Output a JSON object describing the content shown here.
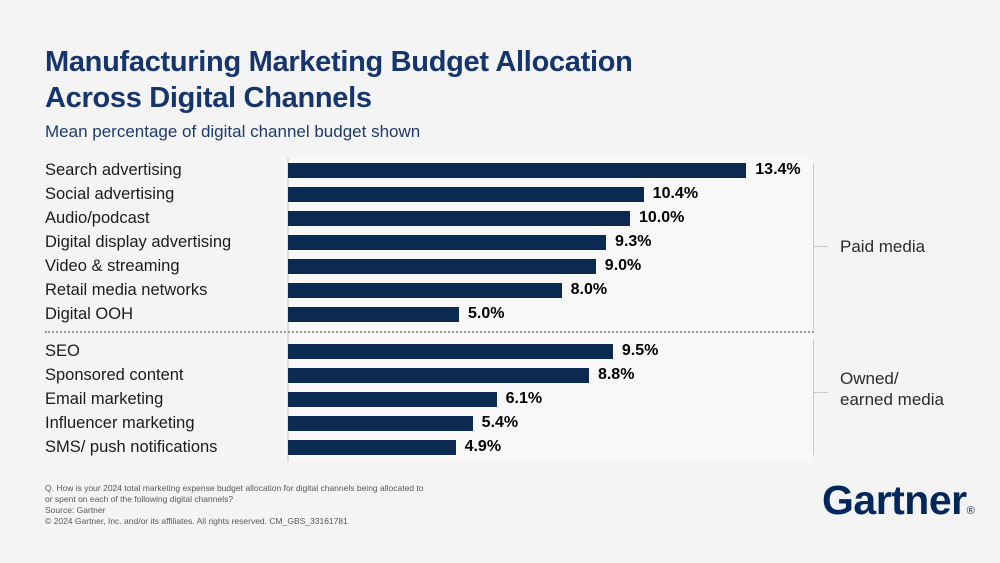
{
  "header": {
    "title_line1": "Manufacturing Marketing Budget Allocation",
    "title_line2": "Across Digital Channels",
    "subtitle": "Mean percentage of digital channel budget shown"
  },
  "chart_data": {
    "type": "bar",
    "orientation": "horizontal",
    "title": "Manufacturing Marketing Budget Allocation Across Digital Channels",
    "subtitle": "Mean percentage of digital channel budget shown",
    "unit": "percent of digital channel budget (mean)",
    "value_suffix": "%",
    "xlim": [
      0,
      15.4
    ],
    "grid": false,
    "bar_color": "#0a2a52",
    "groups": [
      {
        "label": "Paid media",
        "label_lines": [
          "Paid media"
        ],
        "categories": [
          "Search advertising",
          "Social advertising",
          "Audio/podcast",
          "Digital display advertising",
          "Video & streaming",
          "Retail media networks",
          "Digital OOH"
        ],
        "values": [
          13.4,
          10.4,
          10.0,
          9.3,
          9.0,
          8.0,
          5.0
        ]
      },
      {
        "label": "Owned/ earned media",
        "label_lines": [
          "Owned/",
          "earned media"
        ],
        "categories": [
          "SEO",
          "Sponsored content",
          "Email marketing",
          "Influencer marketing",
          "SMS/ push notifications"
        ],
        "values": [
          9.5,
          8.8,
          6.1,
          5.4,
          4.9
        ]
      }
    ]
  },
  "footer": {
    "lines": [
      "Q. How is your 2024 total marketing expense budget allocation for digital channels being allocated to",
      "or spent on each of the following digital channels?",
      "Source: Gartner",
      "© 2024 Gartner, Inc. and/or its affiliates. All rights reserved. CM_GBS_33161781"
    ],
    "logo_text": "Gartner",
    "logo_registered": "®"
  }
}
